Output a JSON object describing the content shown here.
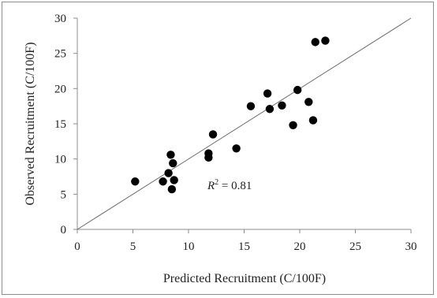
{
  "chart_data": {
    "type": "scatter",
    "xlabel": "Predicted Recruitment (C/100F)",
    "ylabel": "Observed Recruitment (C/100F)",
    "xlim": [
      0,
      30
    ],
    "ylim": [
      0,
      30
    ],
    "xticks": [
      "0",
      "5",
      "10",
      "15",
      "20",
      "25",
      "30"
    ],
    "yticks": [
      "0",
      "5",
      "10",
      "15",
      "20",
      "25",
      "30"
    ],
    "grid": false,
    "reference_line": {
      "type": "1:1",
      "from": [
        0,
        0
      ],
      "to": [
        30,
        30
      ]
    },
    "annotation": {
      "r2_symbol": "R",
      "r2_sup": "2",
      "r2_value": " = 0.81"
    },
    "points": [
      {
        "x": 5.2,
        "y": 6.8
      },
      {
        "x": 7.7,
        "y": 6.8
      },
      {
        "x": 8.2,
        "y": 8.0
      },
      {
        "x": 8.4,
        "y": 10.6
      },
      {
        "x": 8.6,
        "y": 9.4
      },
      {
        "x": 8.5,
        "y": 5.7
      },
      {
        "x": 8.7,
        "y": 7.0
      },
      {
        "x": 11.8,
        "y": 10.2
      },
      {
        "x": 11.8,
        "y": 10.8
      },
      {
        "x": 12.2,
        "y": 13.5
      },
      {
        "x": 14.3,
        "y": 11.5
      },
      {
        "x": 15.6,
        "y": 17.5
      },
      {
        "x": 17.1,
        "y": 19.3
      },
      {
        "x": 17.3,
        "y": 17.1
      },
      {
        "x": 18.4,
        "y": 17.6
      },
      {
        "x": 19.4,
        "y": 14.8
      },
      {
        "x": 19.8,
        "y": 19.8
      },
      {
        "x": 20.8,
        "y": 18.1
      },
      {
        "x": 21.2,
        "y": 15.5
      },
      {
        "x": 21.4,
        "y": 26.6
      },
      {
        "x": 22.3,
        "y": 26.8
      }
    ]
  }
}
